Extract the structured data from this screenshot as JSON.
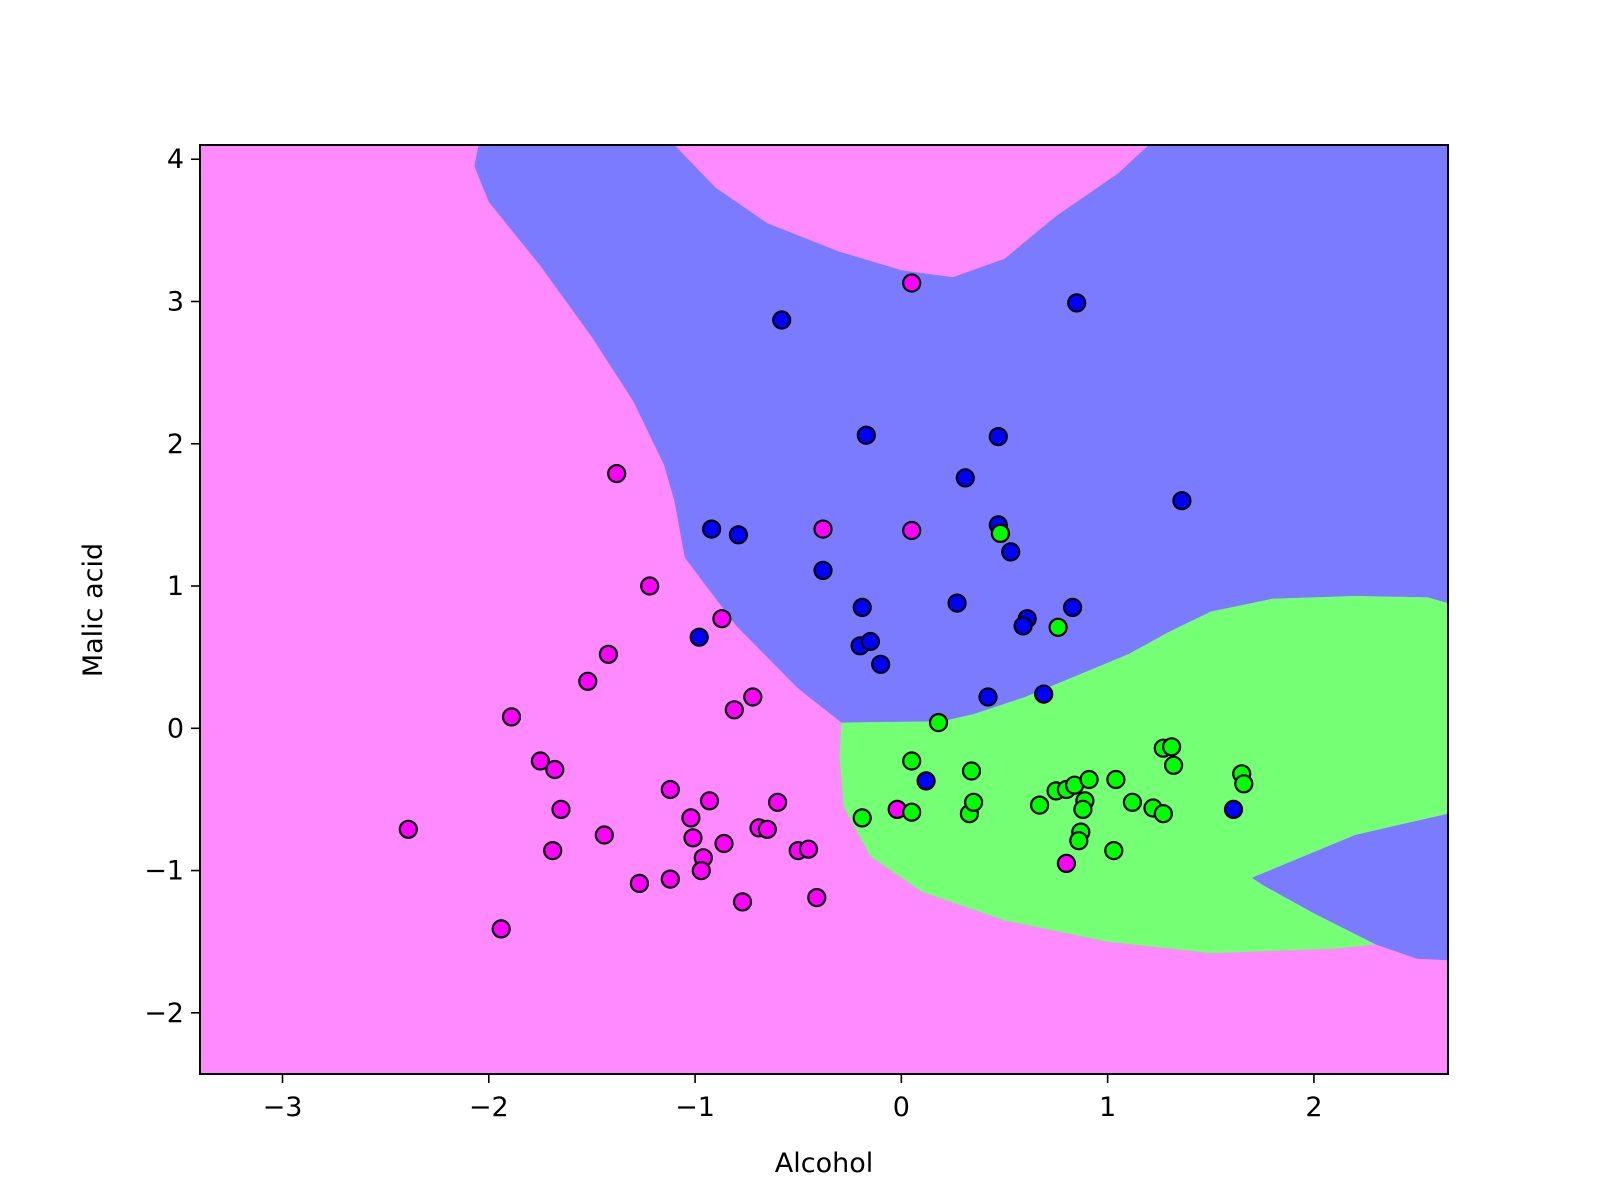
{
  "chart_data": {
    "type": "scatter",
    "title": "",
    "xlabel": "Alcohol",
    "ylabel": "Malic acid",
    "xlim": [
      -3.4,
      2.65
    ],
    "ylim": [
      -2.43,
      4.1
    ],
    "grid": false,
    "legend": "none",
    "x_ticks": [
      -3,
      -2,
      -1,
      0,
      1,
      2
    ],
    "x_tick_labels": [
      "−3",
      "−2",
      "−1",
      "0",
      "1",
      "2"
    ],
    "y_ticks": [
      -2,
      -1,
      0,
      1,
      2,
      3,
      4
    ],
    "y_tick_labels": [
      "−2",
      "−1",
      "0",
      "1",
      "2",
      "3",
      "4"
    ],
    "region_colors": {
      "magenta": "#FF8AFF",
      "blue": "#7B7BFF",
      "green": "#75FF75"
    },
    "decision_regions": [
      {
        "class": "blue",
        "points": [
          [
            -2.05,
            4.1
          ],
          [
            -1.1,
            4.1
          ],
          [
            -0.9,
            3.8
          ],
          [
            -0.65,
            3.55
          ],
          [
            -0.3,
            3.35
          ],
          [
            0.0,
            3.22
          ],
          [
            0.25,
            3.17
          ],
          [
            0.5,
            3.3
          ],
          [
            0.75,
            3.6
          ],
          [
            1.05,
            3.9
          ],
          [
            1.2,
            4.1
          ],
          [
            2.65,
            4.1
          ],
          [
            2.65,
            0.88
          ],
          [
            2.55,
            0.92
          ],
          [
            2.2,
            0.93
          ],
          [
            1.8,
            0.91
          ],
          [
            1.5,
            0.82
          ],
          [
            1.3,
            0.68
          ],
          [
            1.1,
            0.52
          ],
          [
            0.9,
            0.4
          ],
          [
            0.6,
            0.22
          ],
          [
            0.35,
            0.1
          ],
          [
            0.2,
            0.05
          ],
          [
            -0.29,
            0.04
          ],
          [
            -0.5,
            0.28
          ],
          [
            -0.8,
            0.72
          ],
          [
            -1.05,
            1.2
          ],
          [
            -1.1,
            1.6
          ],
          [
            -1.15,
            1.85
          ],
          [
            -1.3,
            2.3
          ],
          [
            -1.5,
            2.75
          ],
          [
            -1.75,
            3.25
          ],
          [
            -2.0,
            3.7
          ],
          [
            -2.07,
            3.95
          ]
        ]
      },
      {
        "class": "green",
        "points": [
          [
            -0.29,
            0.04
          ],
          [
            0.2,
            0.05
          ],
          [
            0.35,
            0.1
          ],
          [
            0.6,
            0.22
          ],
          [
            0.9,
            0.4
          ],
          [
            1.1,
            0.52
          ],
          [
            1.3,
            0.68
          ],
          [
            1.5,
            0.82
          ],
          [
            1.8,
            0.91
          ],
          [
            2.2,
            0.93
          ],
          [
            2.55,
            0.92
          ],
          [
            2.65,
            0.88
          ],
          [
            2.65,
            -0.6
          ],
          [
            2.2,
            -0.75
          ],
          [
            1.7,
            -1.05
          ],
          [
            1.75,
            -1.1
          ],
          [
            2.0,
            -1.3
          ],
          [
            2.3,
            -1.52
          ],
          [
            2.1,
            -1.55
          ],
          [
            1.5,
            -1.58
          ],
          [
            1.0,
            -1.5
          ],
          [
            0.5,
            -1.35
          ],
          [
            0.1,
            -1.15
          ],
          [
            -0.15,
            -0.9
          ],
          [
            -0.28,
            -0.55
          ],
          [
            -0.3,
            -0.2
          ]
        ]
      },
      {
        "class": "blue",
        "points": [
          [
            1.7,
            -1.05
          ],
          [
            2.2,
            -0.75
          ],
          [
            2.65,
            -0.6
          ],
          [
            2.65,
            -1.63
          ],
          [
            2.5,
            -1.62
          ],
          [
            2.3,
            -1.52
          ],
          [
            2.0,
            -1.3
          ],
          [
            1.75,
            -1.1
          ]
        ]
      }
    ],
    "series": [
      {
        "color": "#FF00FF",
        "x": [
          0.05,
          -1.38,
          -0.38,
          0.05,
          -1.22,
          -0.87,
          -1.42,
          -1.52,
          -0.81,
          -0.72,
          -1.89,
          -1.75,
          -1.68,
          -1.65,
          -1.12,
          -0.93,
          -0.6,
          -1.02,
          -0.69,
          -0.65,
          -1.01,
          -0.86,
          -0.5,
          -0.45,
          -1.69,
          -1.44,
          -0.96,
          -0.97,
          -1.12,
          -1.27,
          -0.77,
          -0.41,
          -2.39,
          -1.94,
          -0.02,
          0.8
        ],
        "y": [
          3.13,
          1.79,
          1.4,
          1.39,
          1.0,
          0.77,
          0.52,
          0.33,
          0.13,
          0.22,
          0.08,
          -0.23,
          -0.29,
          -0.57,
          -0.43,
          -0.51,
          -0.52,
          -0.63,
          -0.7,
          -0.71,
          -0.77,
          -0.81,
          -0.86,
          -0.85,
          -0.86,
          -0.75,
          -0.91,
          -1.0,
          -1.06,
          -1.09,
          -1.22,
          -1.19,
          -0.71,
          -1.41,
          -0.57,
          -0.95
        ]
      },
      {
        "color": "#0000FF",
        "x": [
          -0.58,
          0.85,
          -0.17,
          0.47,
          0.31,
          1.36,
          -0.92,
          -0.79,
          0.47,
          0.53,
          -0.38,
          0.27,
          -0.19,
          0.83,
          0.61,
          0.59,
          -0.98,
          -0.2,
          -0.15,
          -0.1,
          0.42,
          0.69,
          0.12,
          1.61
        ],
        "y": [
          2.87,
          2.99,
          2.06,
          2.05,
          1.76,
          1.6,
          1.4,
          1.36,
          1.43,
          1.24,
          1.11,
          0.88,
          0.85,
          0.85,
          0.77,
          0.72,
          0.64,
          0.58,
          0.61,
          0.45,
          0.22,
          0.24,
          -0.37,
          -0.57
        ]
      },
      {
        "color": "#00FF00",
        "x": [
          0.48,
          0.76,
          0.18,
          0.05,
          0.34,
          0.05,
          0.33,
          0.35,
          -0.19,
          0.67,
          0.75,
          0.8,
          0.84,
          0.91,
          0.89,
          0.88,
          0.87,
          0.86,
          1.04,
          1.03,
          1.12,
          1.22,
          1.27,
          1.27,
          1.31,
          1.32,
          1.65,
          1.66
        ],
        "y": [
          1.37,
          0.71,
          0.04,
          -0.23,
          -0.3,
          -0.59,
          -0.6,
          -0.52,
          -0.63,
          -0.54,
          -0.44,
          -0.43,
          -0.4,
          -0.36,
          -0.51,
          -0.57,
          -0.73,
          -0.79,
          -0.36,
          -0.86,
          -0.52,
          -0.56,
          -0.6,
          -0.14,
          -0.13,
          -0.26,
          -0.32,
          -0.39
        ]
      }
    ]
  }
}
